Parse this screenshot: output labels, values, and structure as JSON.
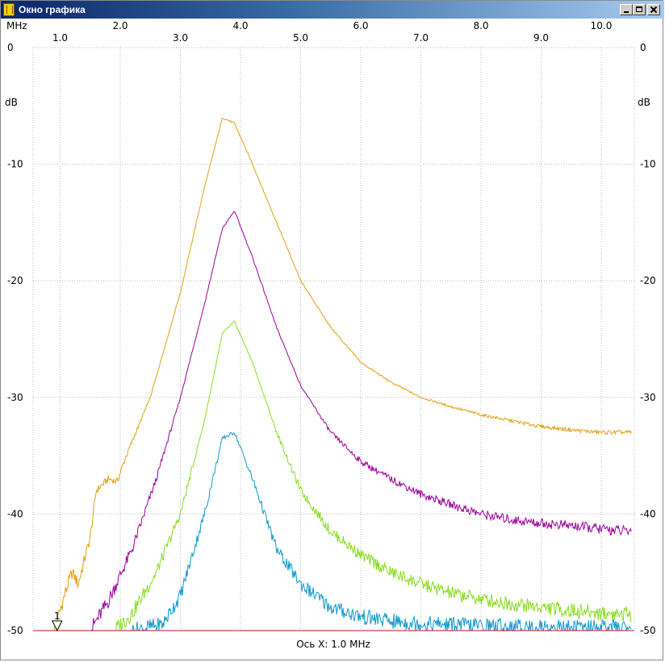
{
  "window": {
    "title": "Окно графика"
  },
  "chart_data": {
    "type": "line",
    "x_unit": "MHz",
    "y_unit": "dB",
    "x_axis_caption": "Ось X: 1.0 MHz",
    "xlim": [
      0.55,
      10.55
    ],
    "ylim": [
      -50,
      0
    ],
    "x_ticks": [
      "1.0",
      "2.0",
      "3.0",
      "4.0",
      "5.0",
      "6.0",
      "7.0",
      "8.0",
      "9.0",
      "10.0"
    ],
    "y_ticks": [
      "0",
      "-10",
      "-20",
      "-30",
      "-40",
      "-50"
    ],
    "grid": true,
    "marker": {
      "label": "1",
      "x": 0.95,
      "y": -50
    },
    "series": [
      {
        "color": "#e0a010",
        "x": [
          0.9,
          1.1,
          1.2,
          1.3,
          1.5,
          1.6,
          1.8,
          1.95,
          2.1,
          2.5,
          3.0,
          3.4,
          3.7,
          3.9,
          4.2,
          4.6,
          5.0,
          5.5,
          6.0,
          6.5,
          7.0,
          7.5,
          8.0,
          8.5,
          9.0,
          9.5,
          10.0,
          10.5
        ],
        "y": [
          -50,
          -46.5,
          -45,
          -46,
          -42,
          -38,
          -37,
          -37.2,
          -35,
          -30,
          -21,
          -12,
          -6,
          -6.5,
          -10,
          -15,
          -20,
          -24,
          -27,
          -28.7,
          -30,
          -30.8,
          -31.5,
          -32,
          -32.5,
          -32.8,
          -33,
          -33
        ]
      },
      {
        "color": "#990099",
        "x": [
          1.5,
          1.8,
          2.2,
          2.6,
          3.0,
          3.4,
          3.7,
          3.9,
          4.2,
          4.6,
          5.0,
          5.5,
          6.0,
          6.5,
          7.0,
          7.5,
          8.0,
          8.5,
          9.0,
          9.5,
          10.0,
          10.5
        ],
        "y": [
          -50,
          -47.5,
          -43,
          -37,
          -30,
          -22,
          -15.5,
          -14,
          -18,
          -24,
          -29,
          -33,
          -35.5,
          -37,
          -38.3,
          -39.2,
          -40,
          -40.5,
          -40.8,
          -41,
          -41.3,
          -41.5
        ]
      },
      {
        "color": "#88dd22",
        "x": [
          1.9,
          2.2,
          2.6,
          3.0,
          3.4,
          3.7,
          3.9,
          4.2,
          4.6,
          5.0,
          5.5,
          6.0,
          6.5,
          7.0,
          7.5,
          8.0,
          8.5,
          9.0,
          9.5,
          10.0,
          10.5
        ],
        "y": [
          -50,
          -48.5,
          -45,
          -40,
          -32,
          -24.5,
          -23.5,
          -27,
          -33,
          -38,
          -41.5,
          -43.5,
          -45,
          -46,
          -46.8,
          -47.3,
          -47.7,
          -48,
          -48.3,
          -48.5,
          -48.6
        ]
      },
      {
        "color": "#1199cc",
        "x": [
          2.2,
          2.7,
          3.0,
          3.4,
          3.7,
          3.9,
          4.2,
          4.6,
          5.0,
          5.5,
          6.0,
          6.5,
          7.0,
          8.0,
          9.0,
          10.5
        ],
        "y": [
          -50,
          -49.5,
          -47,
          -40,
          -33.5,
          -33,
          -37,
          -43,
          -46,
          -48,
          -48.8,
          -49.2,
          -49.4,
          -49.6,
          -49.7,
          -49.8
        ]
      },
      {
        "color": "#cc1111",
        "x": [
          0.55,
          10.55
        ],
        "y": [
          -50,
          -50
        ]
      }
    ]
  }
}
